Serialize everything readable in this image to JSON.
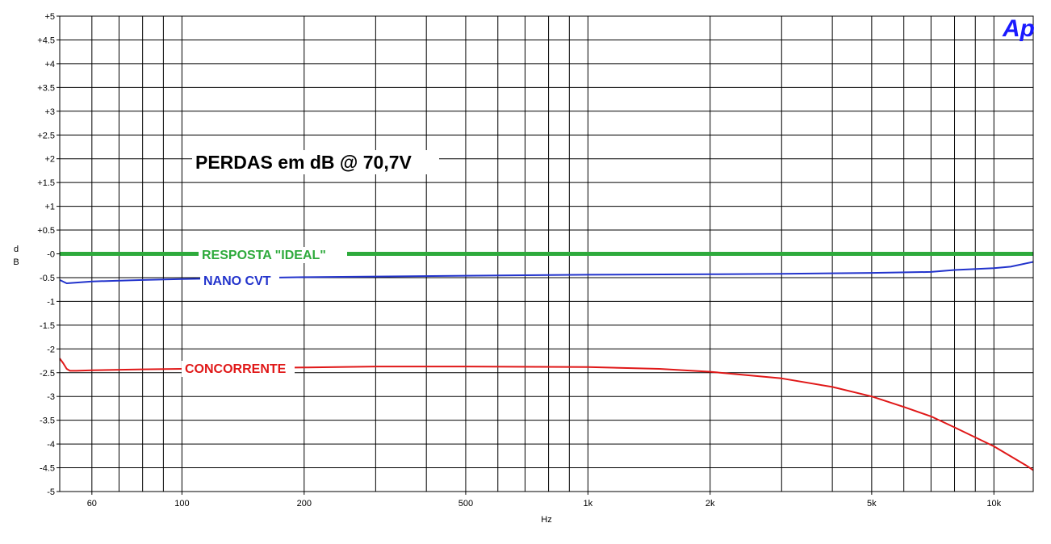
{
  "chart_data": {
    "type": "line",
    "title": "PERDAS em dB @ 70,7V",
    "xlabel": "Hz",
    "ylabel": "dB",
    "x_scale": "log",
    "xlim": [
      50,
      12500
    ],
    "ylim": [
      -5,
      5
    ],
    "grid": true,
    "x_ticks": [
      {
        "value": 60,
        "label": "60"
      },
      {
        "value": 100,
        "label": "100"
      },
      {
        "value": 200,
        "label": "200"
      },
      {
        "value": 500,
        "label": "500"
      },
      {
        "value": 1000,
        "label": "1k"
      },
      {
        "value": 2000,
        "label": "2k"
      },
      {
        "value": 5000,
        "label": "5k"
      },
      {
        "value": 10000,
        "label": "10k"
      }
    ],
    "y_ticks": [
      {
        "value": 5,
        "label": "+5"
      },
      {
        "value": 4.5,
        "label": "+4.5"
      },
      {
        "value": 4,
        "label": "+4"
      },
      {
        "value": 3.5,
        "label": "+3.5"
      },
      {
        "value": 3,
        "label": "+3"
      },
      {
        "value": 2.5,
        "label": "+2.5"
      },
      {
        "value": 2,
        "label": "+2"
      },
      {
        "value": 1.5,
        "label": "+1.5"
      },
      {
        "value": 1,
        "label": "+1"
      },
      {
        "value": 0.5,
        "label": "+0.5"
      },
      {
        "value": 0,
        "label": "-0"
      },
      {
        "value": -0.5,
        "label": "-0.5"
      },
      {
        "value": -1,
        "label": "-1"
      },
      {
        "value": -1.5,
        "label": "-1.5"
      },
      {
        "value": -2,
        "label": "-2"
      },
      {
        "value": -2.5,
        "label": "-2.5"
      },
      {
        "value": -3,
        "label": "-3"
      },
      {
        "value": -3.5,
        "label": "-3.5"
      },
      {
        "value": -4,
        "label": "-4"
      },
      {
        "value": -4.5,
        "label": "-4.5"
      },
      {
        "value": -5,
        "label": "-5"
      }
    ],
    "series": [
      {
        "name": "RESPOSTA \"IDEAL\"",
        "color": "#2eaa3c",
        "x": [
          50,
          12500
        ],
        "y": [
          0,
          0
        ]
      },
      {
        "name": "NANO CVT",
        "color": "#2233cc",
        "x": [
          50,
          52,
          60,
          80,
          100,
          200,
          500,
          1000,
          2000,
          3000,
          5000,
          7000,
          8000,
          10000,
          11000,
          12000,
          12500
        ],
        "y": [
          -0.55,
          -0.62,
          -0.58,
          -0.55,
          -0.53,
          -0.49,
          -0.46,
          -0.44,
          -0.43,
          -0.42,
          -0.4,
          -0.38,
          -0.34,
          -0.3,
          -0.27,
          -0.2,
          -0.17
        ]
      },
      {
        "name": "CONCORRENTE",
        "color": "#e01818",
        "x": [
          50,
          51,
          52,
          53,
          55,
          60,
          80,
          100,
          200,
          300,
          500,
          1000,
          1500,
          2000,
          3000,
          4000,
          5000,
          6000,
          7000,
          8000,
          10000,
          12000,
          12500
        ],
        "y": [
          -2.2,
          -2.3,
          -2.42,
          -2.46,
          -2.46,
          -2.45,
          -2.43,
          -2.42,
          -2.39,
          -2.37,
          -2.37,
          -2.38,
          -2.42,
          -2.48,
          -2.62,
          -2.8,
          -3.0,
          -3.22,
          -3.42,
          -3.65,
          -4.05,
          -4.45,
          -4.55
        ]
      }
    ]
  },
  "logo_text": "Ap",
  "logo_color": "#1a1aff"
}
